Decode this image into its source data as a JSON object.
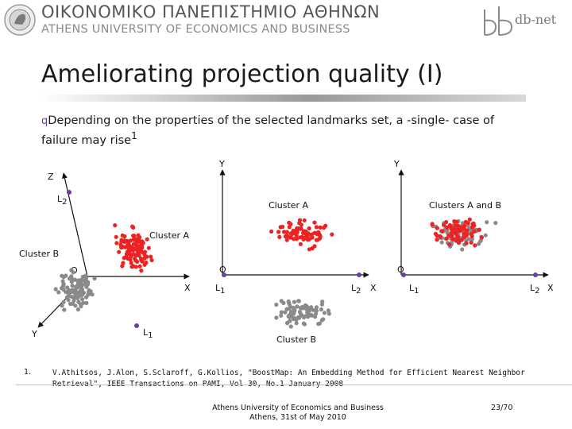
{
  "header": {
    "university_greek": "ΟΙΚΟΝΟΜΙΚΟ ΠΑΝΕΠΙΣΤΗΜΙΟ ΑΘΗΝΩΝ",
    "university_english": "ATHENS UNIVERSITY OF ECONOMICS AND BUSINESS",
    "logo_text": "db-net"
  },
  "slide": {
    "title": "Ameliorating projection quality (I)",
    "bullet_marker": "q",
    "bullet_text": "Depending on the properties of the selected landmarks set, a -single- case of failure may rise",
    "bullet_superscript": "1"
  },
  "diagram": {
    "left_panel": {
      "axis_z": "Z",
      "axis_y": "Y",
      "axis_x": "X",
      "origin": "O",
      "landmark_top": "L",
      "landmark_top_sub": "2",
      "landmark_bottom": "L",
      "landmark_bottom_sub": "1",
      "cluster_a_label": "Cluster A",
      "cluster_b_label": "Cluster B"
    },
    "middle_panel": {
      "axis_y": "Y",
      "axis_x": "X",
      "origin": "O",
      "landmark_left": "L",
      "landmark_left_sub": "1",
      "landmark_right": "L",
      "landmark_right_sub": "2",
      "cluster_a_label": "Cluster A",
      "cluster_b_label": "Cluster B"
    },
    "right_panel": {
      "axis_y": "Y",
      "axis_x": "X",
      "origin": "O",
      "landmark_left": "L",
      "landmark_left_sub": "1",
      "landmark_right": "L",
      "landmark_right_sub": "2",
      "clusters_label": "Clusters A and B"
    },
    "colors": {
      "cluster_a": "#ee2222",
      "cluster_b": "#8a8a8a",
      "landmark": "#6b3f9a",
      "axis": "#111111"
    }
  },
  "footnote": {
    "number": "1.",
    "text": "V.Athitsos, J.Alon, S.Sclaroff, G.Kollios, \"BoostMap: An Embedding Method for Efficient Nearest Neighbor Retrieval\", IEEE Transactions on PAMI, Vol 30, No.1 January 2008"
  },
  "footer": {
    "line1": "Athens University of Economics and Business",
    "line2": "Athens, 31st of May 2010",
    "page": "23/70"
  }
}
